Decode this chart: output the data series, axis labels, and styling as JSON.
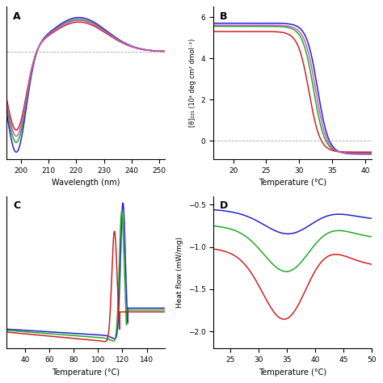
{
  "panel_A": {
    "xlim": [
      195,
      252
    ],
    "xlabel": "Wavelength (nm)",
    "xticks": [
      200,
      210,
      220,
      230,
      240,
      250
    ],
    "colors": [
      "#2222cc",
      "#22aa22",
      "#cc2222",
      "#cc55cc"
    ],
    "label": "A",
    "ylim": [
      -1.2,
      0.5
    ]
  },
  "panel_B": {
    "xlim": [
      17,
      41
    ],
    "ylim": [
      -0.9,
      6.5
    ],
    "xlabel": "Temperature (°C)",
    "ylabel": "[θ]₂₂₁ (10⁴ deg cm² dmol⁻¹)",
    "xticks": [
      20,
      25,
      30,
      35,
      40
    ],
    "yticks": [
      0,
      2,
      4,
      6
    ],
    "colors": [
      "#2222cc",
      "#22aa22",
      "#cc2222",
      "#cc55cc"
    ],
    "label": "B"
  },
  "panel_C": {
    "xlim": [
      25,
      155
    ],
    "ylim_auto": true,
    "xlabel": "Temperature (°C)",
    "xticks": [
      40,
      60,
      80,
      100,
      120,
      140
    ],
    "colors": [
      "#2222cc",
      "#22aa22",
      "#cc2222"
    ],
    "label": "C"
  },
  "panel_D": {
    "xlim": [
      22,
      50
    ],
    "ylim": [
      -2.2,
      -0.4
    ],
    "xlabel": "Temperature (°C)",
    "ylabel": "Heat flow (mW/mg)",
    "xticks": [
      25,
      30,
      35,
      40,
      45,
      50
    ],
    "yticks": [
      -2.0,
      -1.5,
      -1.0,
      -0.5
    ],
    "colors": [
      "#2222cc",
      "#22aa22",
      "#cc2222"
    ],
    "label": "D"
  },
  "background_color": "#ffffff",
  "line_width": 1.1
}
